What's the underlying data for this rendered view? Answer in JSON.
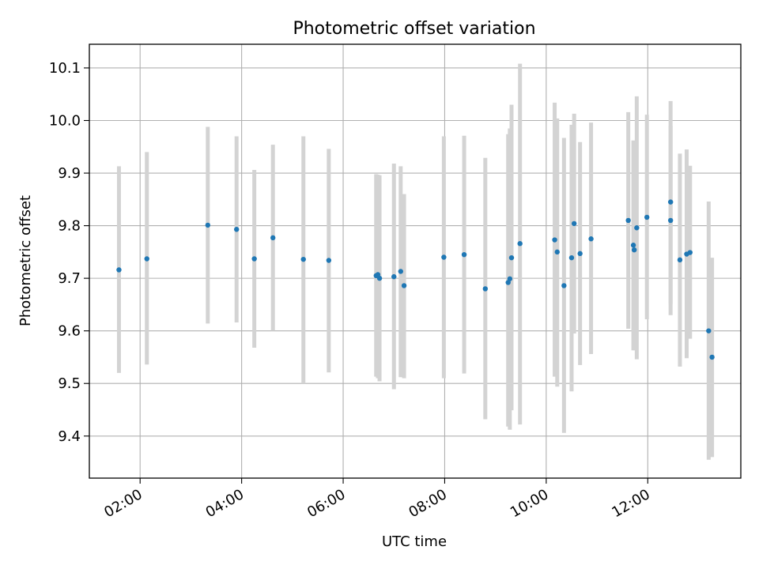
{
  "chart_data": {
    "type": "scatter",
    "title": "Photometric offset variation",
    "xlabel": "UTC time",
    "ylabel": "Photometric offset",
    "xlim": [
      "01:00",
      "13:50"
    ],
    "ylim": [
      9.32,
      10.145
    ],
    "xticks": [
      "02:00",
      "04:00",
      "06:00",
      "08:00",
      "10:00",
      "12:00"
    ],
    "yticks": [
      9.4,
      9.5,
      9.6,
      9.7,
      9.8,
      9.9,
      10.0,
      10.1
    ],
    "ytick_labels": [
      "9.4",
      "9.5",
      "9.6",
      "9.7",
      "9.8",
      "9.9",
      "10.0",
      "10.1"
    ],
    "grid": true,
    "point_color": "#1f77b4",
    "errorbar_color": "#d3d3d3",
    "points": [
      {
        "t": "01:35",
        "y": 9.716,
        "lo": 9.52,
        "hi": 9.913
      },
      {
        "t": "02:08",
        "y": 9.737,
        "lo": 9.536,
        "hi": 9.94
      },
      {
        "t": "03:20",
        "y": 9.801,
        "lo": 9.614,
        "hi": 9.988
      },
      {
        "t": "03:54",
        "y": 9.793,
        "lo": 9.616,
        "hi": 9.97
      },
      {
        "t": "04:15",
        "y": 9.737,
        "lo": 9.568,
        "hi": 9.906
      },
      {
        "t": "04:37",
        "y": 9.777,
        "lo": 9.6,
        "hi": 9.954
      },
      {
        "t": "05:13",
        "y": 9.736,
        "lo": 9.5,
        "hi": 9.97
      },
      {
        "t": "05:43",
        "y": 9.734,
        "lo": 9.521,
        "hi": 9.946
      },
      {
        "t": "06:39",
        "y": 9.705,
        "lo": 9.513,
        "hi": 9.898
      },
      {
        "t": "06:41",
        "y": 9.707,
        "lo": 9.51,
        "hi": 9.897
      },
      {
        "t": "06:43",
        "y": 9.7,
        "lo": 9.504,
        "hi": 9.896
      },
      {
        "t": "07:00",
        "y": 9.703,
        "lo": 9.489,
        "hi": 9.918
      },
      {
        "t": "07:08",
        "y": 9.713,
        "lo": 9.512,
        "hi": 9.913
      },
      {
        "t": "07:12",
        "y": 9.686,
        "lo": 9.51,
        "hi": 9.86
      },
      {
        "t": "07:59",
        "y": 9.74,
        "lo": 9.51,
        "hi": 9.97
      },
      {
        "t": "08:23",
        "y": 9.745,
        "lo": 9.519,
        "hi": 9.971
      },
      {
        "t": "08:48",
        "y": 9.68,
        "lo": 9.432,
        "hi": 9.929
      },
      {
        "t": "09:15",
        "y": 9.692,
        "lo": 9.418,
        "hi": 9.974
      },
      {
        "t": "09:17",
        "y": 9.699,
        "lo": 9.412,
        "hi": 9.985
      },
      {
        "t": "09:19",
        "y": 9.739,
        "lo": 9.449,
        "hi": 10.03
      },
      {
        "t": "09:29",
        "y": 9.766,
        "lo": 9.422,
        "hi": 10.108
      },
      {
        "t": "10:10",
        "y": 9.773,
        "lo": 9.513,
        "hi": 10.034
      },
      {
        "t": "10:13",
        "y": 9.75,
        "lo": 9.494,
        "hi": 10.004
      },
      {
        "t": "10:21",
        "y": 9.686,
        "lo": 9.406,
        "hi": 9.967
      },
      {
        "t": "10:30",
        "y": 9.739,
        "lo": 9.485,
        "hi": 9.992
      },
      {
        "t": "10:33",
        "y": 9.804,
        "lo": 9.595,
        "hi": 10.013
      },
      {
        "t": "10:40",
        "y": 9.747,
        "lo": 9.535,
        "hi": 9.959
      },
      {
        "t": "10:53",
        "y": 9.775,
        "lo": 9.556,
        "hi": 9.996
      },
      {
        "t": "11:37",
        "y": 9.81,
        "lo": 9.604,
        "hi": 10.016
      },
      {
        "t": "11:43",
        "y": 9.763,
        "lo": 9.563,
        "hi": 9.962
      },
      {
        "t": "11:44",
        "y": 9.754,
        "lo": 9.563,
        "hi": 9.945
      },
      {
        "t": "11:47",
        "y": 9.796,
        "lo": 9.546,
        "hi": 10.046
      },
      {
        "t": "11:59",
        "y": 9.816,
        "lo": 9.622,
        "hi": 10.011
      },
      {
        "t": "12:27",
        "y": 9.845,
        "lo": 9.651,
        "hi": 10.037
      },
      {
        "t": "12:27",
        "y": 9.81,
        "lo": 9.63,
        "hi": 9.99
      },
      {
        "t": "12:38",
        "y": 9.735,
        "lo": 9.532,
        "hi": 9.937
      },
      {
        "t": "12:46",
        "y": 9.746,
        "lo": 9.548,
        "hi": 9.945
      },
      {
        "t": "12:50",
        "y": 9.749,
        "lo": 9.585,
        "hi": 9.914
      },
      {
        "t": "13:12",
        "y": 9.6,
        "lo": 9.355,
        "hi": 9.846
      },
      {
        "t": "13:16",
        "y": 9.55,
        "lo": 9.36,
        "hi": 9.739
      }
    ]
  }
}
